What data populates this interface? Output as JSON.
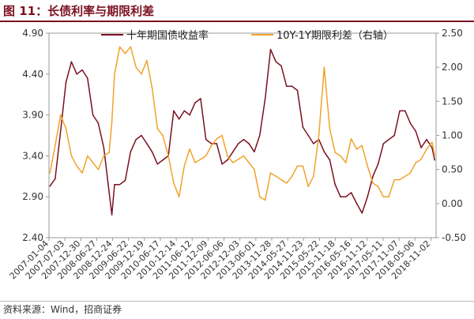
{
  "figure_title": "图 11：长债利率与期限利差",
  "source": "资料来源：Wind，招商证券",
  "colors": {
    "title": "#7b1020",
    "yield": "#7b1020",
    "spread": "#f0a32b"
  },
  "chart_data": {
    "type": "line",
    "title": "",
    "xlabel": "",
    "ylabel": "",
    "y_left": {
      "lim": [
        2.4,
        4.9
      ],
      "ticks": [
        "2.40",
        "2.90",
        "3.40",
        "3.90",
        "4.40",
        "4.90"
      ]
    },
    "y_right": {
      "lim": [
        -0.5,
        2.5
      ],
      "ticks": [
        "-0.50",
        "0.00",
        "0.50",
        "1.00",
        "1.50",
        "2.00",
        "2.50"
      ]
    },
    "x_tick_labels": [
      "2007-01-04",
      "2007-07-03",
      "2007-12-30",
      "2008-06-27",
      "2008-12-24",
      "2009-06-22",
      "2009-12-19",
      "2010-06-17",
      "2010-12-14",
      "2011-06-12",
      "2011-12-09",
      "2012-06-06",
      "2012-12-03",
      "2013-06-01",
      "2013-11-28",
      "2014-05-27",
      "2014-11-23",
      "2015-05-22",
      "2015-11-18",
      "2016-05-16",
      "2016-11-12",
      "2017-05-11",
      "2017-11-07",
      "2018-05-06",
      "2018-11-02"
    ],
    "legend_position": "top",
    "series": [
      {
        "name": "十年期国债收益率",
        "axis": "left",
        "x": [
          "2007-01",
          "2007-03",
          "2007-05",
          "2007-07",
          "2007-09",
          "2007-11",
          "2008-01",
          "2008-03",
          "2008-05",
          "2008-07",
          "2008-09",
          "2008-11",
          "2008-12",
          "2009-01",
          "2009-03",
          "2009-05",
          "2009-07",
          "2009-09",
          "2009-11",
          "2010-01",
          "2010-03",
          "2010-05",
          "2010-07",
          "2010-09",
          "2010-11",
          "2011-01",
          "2011-03",
          "2011-05",
          "2011-07",
          "2011-09",
          "2011-11",
          "2012-01",
          "2012-03",
          "2012-05",
          "2012-07",
          "2012-09",
          "2012-11",
          "2013-01",
          "2013-03",
          "2013-05",
          "2013-07",
          "2013-09",
          "2013-11",
          "2014-01",
          "2014-03",
          "2014-05",
          "2014-07",
          "2014-09",
          "2014-11",
          "2015-01",
          "2015-03",
          "2015-05",
          "2015-07",
          "2015-09",
          "2015-11",
          "2016-01",
          "2016-03",
          "2016-05",
          "2016-07",
          "2016-09",
          "2016-11",
          "2017-01",
          "2017-03",
          "2017-05",
          "2017-07",
          "2017-09",
          "2017-11",
          "2018-01",
          "2018-03",
          "2018-05",
          "2018-07",
          "2018-09",
          "2018-11",
          "2018-12"
        ],
        "values": [
          3.03,
          3.12,
          3.7,
          4.3,
          4.55,
          4.4,
          4.45,
          4.35,
          3.9,
          3.8,
          3.5,
          2.95,
          2.68,
          3.05,
          3.05,
          3.1,
          3.45,
          3.6,
          3.65,
          3.55,
          3.45,
          3.3,
          3.35,
          3.4,
          3.95,
          3.85,
          3.95,
          3.9,
          4.05,
          4.1,
          3.6,
          3.55,
          3.55,
          3.3,
          3.35,
          3.45,
          3.55,
          3.6,
          3.55,
          3.45,
          3.65,
          4.1,
          4.7,
          4.55,
          4.5,
          4.25,
          4.25,
          4.2,
          3.75,
          3.65,
          3.55,
          3.6,
          3.45,
          3.35,
          3.05,
          2.9,
          2.9,
          2.95,
          2.82,
          2.7,
          2.9,
          3.15,
          3.3,
          3.55,
          3.6,
          3.65,
          3.95,
          3.95,
          3.8,
          3.7,
          3.5,
          3.6,
          3.5,
          3.35
        ]
      },
      {
        "name": "10Y-1Y期限利差（右轴）",
        "axis": "right",
        "x": [
          "2007-01",
          "2007-03",
          "2007-05",
          "2007-07",
          "2007-09",
          "2007-11",
          "2008-01",
          "2008-03",
          "2008-05",
          "2008-07",
          "2008-09",
          "2008-11",
          "2008-12",
          "2009-01",
          "2009-03",
          "2009-05",
          "2009-07",
          "2009-09",
          "2009-11",
          "2010-01",
          "2010-03",
          "2010-05",
          "2010-07",
          "2010-09",
          "2010-11",
          "2011-01",
          "2011-03",
          "2011-05",
          "2011-07",
          "2011-09",
          "2011-11",
          "2012-01",
          "2012-03",
          "2012-05",
          "2012-07",
          "2012-09",
          "2012-11",
          "2013-01",
          "2013-03",
          "2013-05",
          "2013-07",
          "2013-09",
          "2013-11",
          "2014-01",
          "2014-03",
          "2014-05",
          "2014-07",
          "2014-09",
          "2014-11",
          "2015-01",
          "2015-03",
          "2015-05",
          "2015-07",
          "2015-09",
          "2015-11",
          "2016-01",
          "2016-03",
          "2016-05",
          "2016-07",
          "2016-09",
          "2016-11",
          "2017-01",
          "2017-03",
          "2017-05",
          "2017-07",
          "2017-09",
          "2017-11",
          "2018-01",
          "2018-03",
          "2018-05",
          "2018-07",
          "2018-09",
          "2018-11",
          "2018-12"
        ],
        "values": [
          0.45,
          0.85,
          1.3,
          1.1,
          0.7,
          0.55,
          0.45,
          0.7,
          0.6,
          0.5,
          0.7,
          0.75,
          1.2,
          1.9,
          2.3,
          2.2,
          2.3,
          2.0,
          1.9,
          2.1,
          1.7,
          1.1,
          1.0,
          0.7,
          0.3,
          0.1,
          0.55,
          0.8,
          0.6,
          0.65,
          0.7,
          0.85,
          0.95,
          1.0,
          0.7,
          0.6,
          0.65,
          0.7,
          0.6,
          0.5,
          0.1,
          0.05,
          0.45,
          0.4,
          0.35,
          0.3,
          0.4,
          0.55,
          0.55,
          0.25,
          0.4,
          1.0,
          2.0,
          1.1,
          0.75,
          0.7,
          0.6,
          0.95,
          0.8,
          0.85,
          0.55,
          0.3,
          0.25,
          0.1,
          0.1,
          0.35,
          0.35,
          0.4,
          0.45,
          0.6,
          0.65,
          0.8,
          0.9,
          0.7
        ]
      }
    ]
  }
}
